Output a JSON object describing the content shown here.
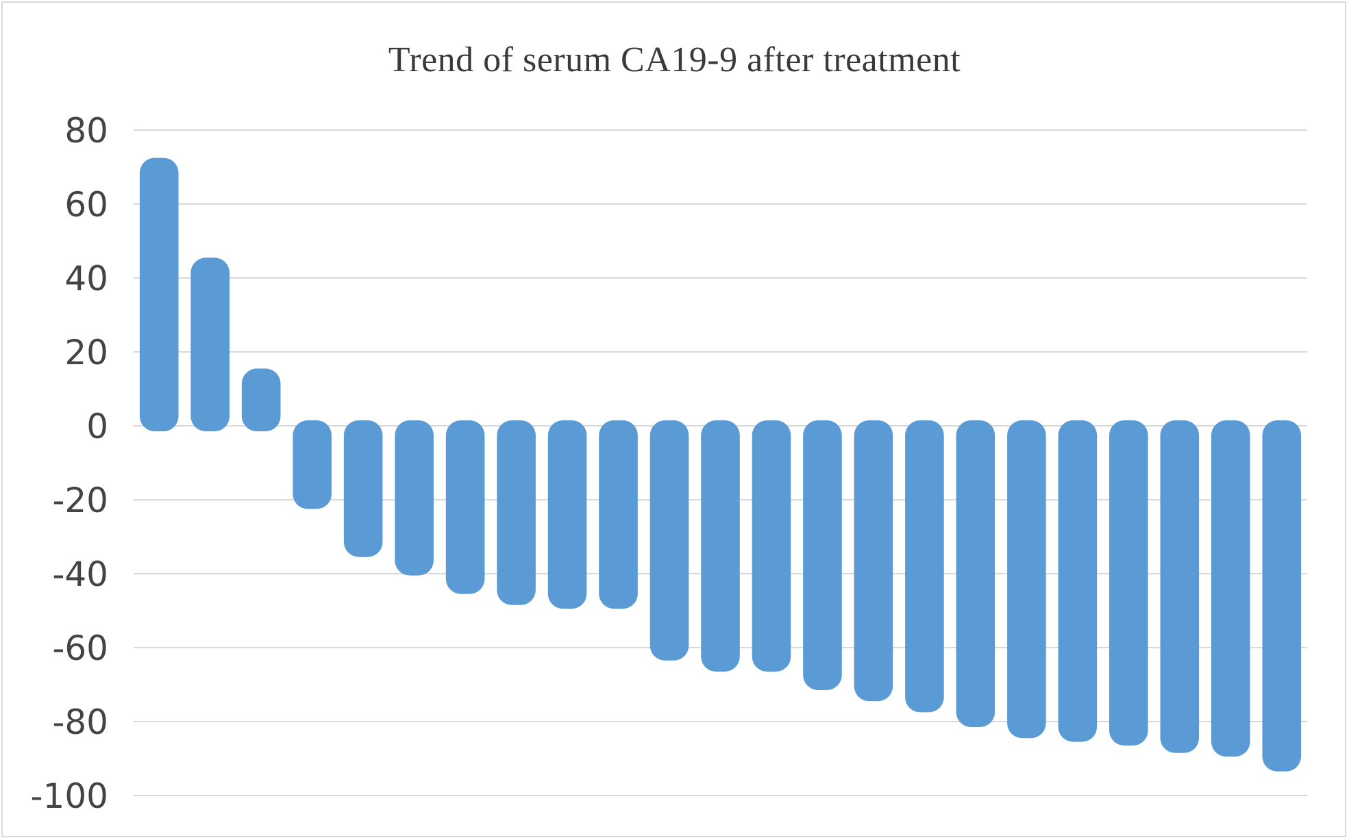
{
  "chart_data": {
    "type": "bar",
    "title": "Trend of serum CA19-9 after treatment",
    "xlabel": "",
    "ylabel": "",
    "ylim": [
      -100,
      80
    ],
    "yticks": [
      80,
      60,
      40,
      20,
      0,
      -20,
      -40,
      -60,
      -80,
      -100
    ],
    "grid": true,
    "legend": "none",
    "bar_color": "#5b9bd5",
    "gridline_color": "#d9d9d9",
    "values": [
      71,
      44,
      14,
      -21,
      -34,
      -39,
      -44,
      -47,
      -48,
      -48,
      -62,
      -65,
      -65,
      -70,
      -73,
      -76,
      -80,
      -83,
      -84,
      -85,
      -87,
      -88,
      -92
    ]
  }
}
